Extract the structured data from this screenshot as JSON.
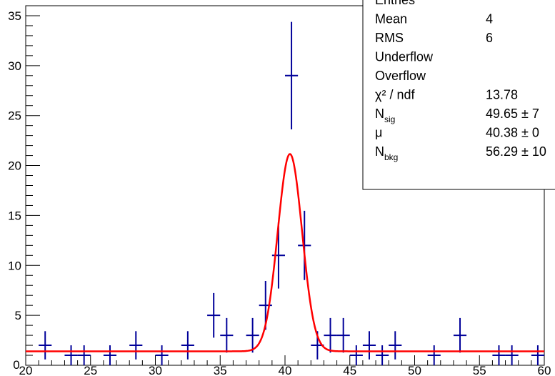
{
  "chart_data": {
    "type": "histogram",
    "xlim": [
      20,
      60
    ],
    "ylim": [
      0,
      36
    ],
    "x_ticks": [
      "20",
      "25",
      "30",
      "35",
      "40",
      "45",
      "50",
      "55",
      "60"
    ],
    "y_ticks": [
      "5",
      "10",
      "15",
      "20",
      "25",
      "30",
      "35"
    ],
    "bin_width": 1,
    "series": [
      {
        "kind": "data",
        "color": "#000099",
        "bins": [
          {
            "x": 21.5,
            "y": 2
          },
          {
            "x": 23.5,
            "y": 1
          },
          {
            "x": 24.5,
            "y": 1
          },
          {
            "x": 26.5,
            "y": 1
          },
          {
            "x": 28.5,
            "y": 2
          },
          {
            "x": 30.5,
            "y": 1
          },
          {
            "x": 32.5,
            "y": 2
          },
          {
            "x": 34.5,
            "y": 5
          },
          {
            "x": 35.5,
            "y": 3
          },
          {
            "x": 37.5,
            "y": 3
          },
          {
            "x": 38.5,
            "y": 6
          },
          {
            "x": 39.5,
            "y": 11
          },
          {
            "x": 40.5,
            "y": 29
          },
          {
            "x": 41.5,
            "y": 12
          },
          {
            "x": 42.5,
            "y": 2
          },
          {
            "x": 43.5,
            "y": 3
          },
          {
            "x": 44.5,
            "y": 3
          },
          {
            "x": 45.5,
            "y": 1
          },
          {
            "x": 46.5,
            "y": 2
          },
          {
            "x": 47.5,
            "y": 1
          },
          {
            "x": 48.5,
            "y": 2
          },
          {
            "x": 51.5,
            "y": 1
          },
          {
            "x": 53.5,
            "y": 3
          },
          {
            "x": 56.5,
            "y": 1
          },
          {
            "x": 57.5,
            "y": 1
          },
          {
            "x": 59.5,
            "y": 1
          }
        ]
      },
      {
        "kind": "fit",
        "color": "#ff0000",
        "function": "gaussian_plus_constant",
        "background_level": 1.4,
        "peak_mean": 40.38,
        "peak_sigma": 0.94,
        "peak_height": 19.75
      }
    ],
    "stats_box": {
      "rows": [
        {
          "label": "Entries",
          "value": ""
        },
        {
          "label": "Mean",
          "value": "4"
        },
        {
          "label": "RMS",
          "value": "6"
        },
        {
          "label": "Underflow",
          "value": ""
        },
        {
          "label": "Overflow",
          "value": ""
        },
        {
          "label": "χ² / ndf",
          "value": "13.78"
        },
        {
          "label": "N_sig",
          "value": "49.65 ± 7"
        },
        {
          "label": "μ",
          "value": "40.38 ± 0"
        },
        {
          "label": "N_bkg",
          "value": "56.29 ± 10"
        }
      ]
    }
  }
}
